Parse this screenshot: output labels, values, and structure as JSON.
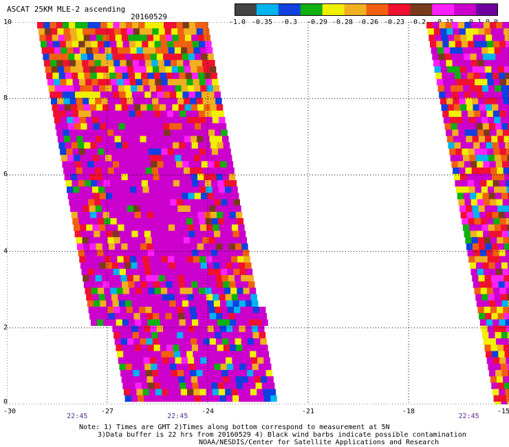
{
  "header": {
    "title": "ASCAT 25KM MLE-2 ascending",
    "date": "20160529"
  },
  "colorbar": {
    "colors": [
      "#444444",
      "#00b4f0",
      "#1040e0",
      "#10b010",
      "#f0f000",
      "#f0b020",
      "#f06010",
      "#f01030",
      "#7a3a1c",
      "#ff20ff",
      "#cc00cc",
      "#7000a0"
    ],
    "tick_labels": [
      "-1.0",
      "-0.35",
      "-0.3",
      "-0.29",
      "-0.28",
      "-0.26",
      "-0.23",
      "-0.2",
      "-0.15",
      "-0.1",
      "0.0"
    ]
  },
  "map": {
    "x_ticks": [
      "-30",
      "-27",
      "-24",
      "-21",
      "-18",
      "-15"
    ],
    "y_ticks": [
      "0",
      "2",
      "4",
      "6",
      "8",
      "10"
    ],
    "lon_range": [
      -30,
      -15
    ],
    "lat_range": [
      0,
      10
    ],
    "grid_style": "dotted",
    "times": [
      {
        "label": "22:45",
        "lon": -27.9
      },
      {
        "label": "22:45",
        "lon": -24.9
      },
      {
        "label": "22:45",
        "lon": -16.2
      }
    ]
  },
  "footnote": {
    "line1": "Note: 1) Times are GMT 2)Times along bottom correspond to measurement at 5N",
    "line2": "3)Data buffer is 22 hrs from 20160529 4) Black wind barbs indicate possible contamination",
    "line3": "NOAA/NESDIS/Center for Satellite Applications and Research"
  }
}
